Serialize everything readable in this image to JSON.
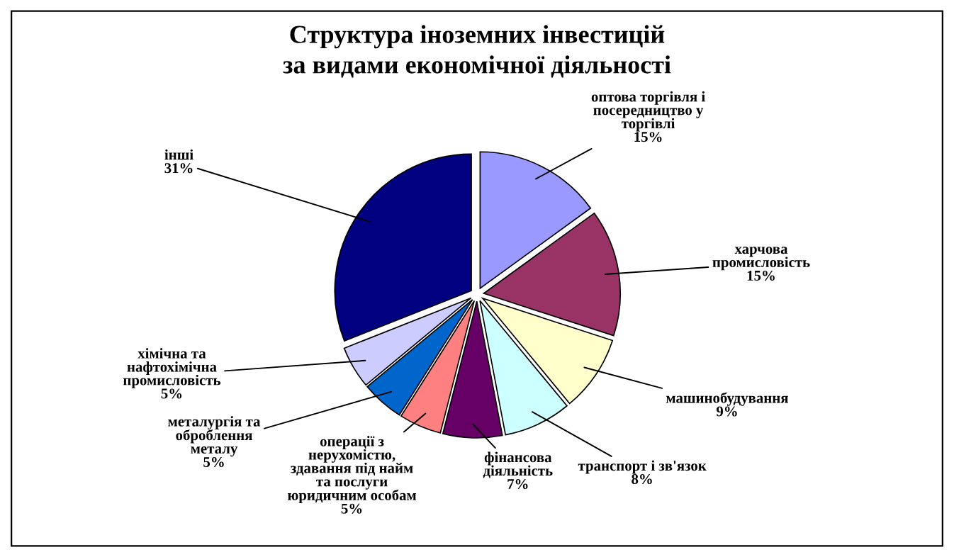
{
  "chart_data": {
    "type": "pie",
    "title": "Структура іноземних інвестицій\nза видами економічної діяльності",
    "categories": [
      "оптова торгівля і\nпосередництво у\nторгівлі",
      "харчова\nпромисловість",
      "машинобудування",
      "транспорт і зв'язок",
      "фінансова\nдіяльність",
      "операції з\nнерухомістю,\nздавання під найм\nта послуги\nюридичним особам",
      "металургія та\nоброблення\nметалу",
      "хімічна та\nнафтохімічна\nпромисловість",
      "інші"
    ],
    "values": [
      15,
      15,
      9,
      8,
      7,
      5,
      5,
      5,
      31
    ],
    "value_labels": [
      "15%",
      "15%",
      "9%",
      "8%",
      "7%",
      "5%",
      "5%",
      "5%",
      "31%"
    ],
    "colors": [
      "#9999ff",
      "#993366",
      "#ffffcc",
      "#ccffff",
      "#660066",
      "#ff8080",
      "#0066cc",
      "#ccccff",
      "#000080"
    ]
  }
}
